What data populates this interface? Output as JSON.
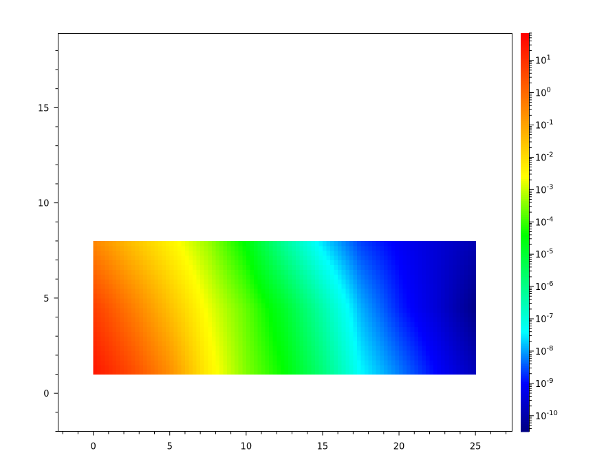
{
  "chart_data": {
    "type": "heatmap",
    "title": "",
    "xlabel": "",
    "ylabel": "",
    "xlim": [
      -2.3,
      27.4
    ],
    "ylim": [
      -2.0,
      18.9
    ],
    "grid": false,
    "x_ticks": [
      "0",
      "5",
      "10",
      "15",
      "20",
      "25"
    ],
    "x_tick_values": [
      0,
      5,
      10,
      15,
      20,
      25
    ],
    "y_ticks": [
      "0",
      "5",
      "10",
      "15"
    ],
    "y_tick_values": [
      0,
      5,
      10,
      15
    ],
    "data_extent": {
      "x": [
        0,
        25
      ],
      "y": [
        1,
        8
      ]
    },
    "grid_x": [
      0,
      2.5,
      5,
      7.5,
      10,
      12.5,
      15,
      17.5,
      20,
      22.5,
      25
    ],
    "grid_y": [
      1,
      4.5,
      8
    ],
    "z": [
      [
        32.0,
        4.0,
        0.25,
        0.005,
        0.00032,
        4e-05,
        1.6e-06,
        4e-08,
        6.3e-09,
        1e-09,
        1.6e-10
      ],
      [
        6.3,
        0.5,
        0.032,
        0.002,
        0.0002,
        1.3e-05,
        4e-07,
        1.3e-08,
        1.6e-09,
        3.2e-10,
        4e-11
      ],
      [
        0.32,
        0.032,
        0.004,
        0.0005,
        3.2e-05,
        6.3e-07,
        2.5e-08,
        2.5e-09,
        7.9e-10,
        3.2e-10,
        1.3e-10
      ]
    ],
    "colorbar": {
      "scale": "log",
      "range": [
        3.2e-11,
        70.0
      ],
      "colormap": "jet",
      "colors": [
        "#000080",
        "#0000ff",
        "#00ffff",
        "#00ff00",
        "#ffff00",
        "#ff0000"
      ],
      "ticks": [
        {
          "base": "10",
          "exp": "1",
          "value": 10.0
        },
        {
          "base": "10",
          "exp": "0",
          "value": 1.0
        },
        {
          "base": "10",
          "exp": "-1",
          "value": 0.1
        },
        {
          "base": "10",
          "exp": "-2",
          "value": 0.01
        },
        {
          "base": "10",
          "exp": "-3",
          "value": 0.001
        },
        {
          "base": "10",
          "exp": "-4",
          "value": 0.0001
        },
        {
          "base": "10",
          "exp": "-5",
          "value": 1e-05
        },
        {
          "base": "10",
          "exp": "-6",
          "value": 1e-06
        },
        {
          "base": "10",
          "exp": "-7",
          "value": 1e-07
        },
        {
          "base": "10",
          "exp": "-8",
          "value": 1e-08
        },
        {
          "base": "10",
          "exp": "-9",
          "value": 1e-09
        },
        {
          "base": "10",
          "exp": "-10",
          "value": 1e-10
        }
      ]
    }
  }
}
